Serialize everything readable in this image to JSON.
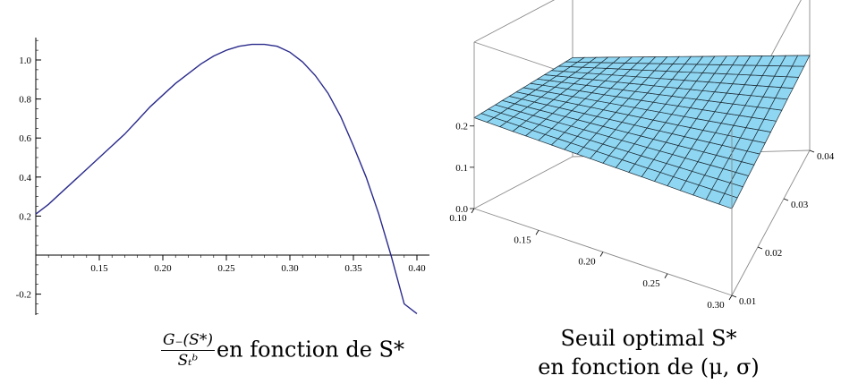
{
  "chart_data": [
    {
      "type": "line",
      "xlim": [
        0.1,
        0.4
      ],
      "ylim": [
        -0.3,
        1.12
      ],
      "x_ticks": [
        "0.15",
        "0.20",
        "0.25",
        "0.30",
        "0.35",
        "0.40"
      ],
      "y_ticks": [
        "-0.2",
        "0.2",
        "0.4",
        "0.6",
        "0.8",
        "1.0"
      ],
      "series": [
        {
          "color": "#2a2a8c",
          "x": [
            0.1,
            0.11,
            0.12,
            0.13,
            0.14,
            0.15,
            0.16,
            0.17,
            0.18,
            0.19,
            0.2,
            0.21,
            0.22,
            0.23,
            0.24,
            0.25,
            0.26,
            0.27,
            0.28,
            0.29,
            0.3,
            0.31,
            0.32,
            0.33,
            0.34,
            0.35,
            0.36,
            0.37,
            0.38,
            0.39,
            0.4
          ],
          "y": [
            0.21,
            0.26,
            0.32,
            0.38,
            0.44,
            0.5,
            0.56,
            0.62,
            0.69,
            0.76,
            0.82,
            0.88,
            0.93,
            0.98,
            1.02,
            1.05,
            1.07,
            1.08,
            1.08,
            1.07,
            1.04,
            0.99,
            0.92,
            0.83,
            0.71,
            0.56,
            0.4,
            0.21,
            -0.01,
            -0.25,
            -0.3
          ]
        }
      ],
      "grid": false
    },
    {
      "type": "surface",
      "x_ticks": [
        "0.10",
        "0.15",
        "0.20",
        "0.25",
        "0.30"
      ],
      "y_ticks": [
        "0.01",
        "0.02",
        "0.03",
        "0.04"
      ],
      "z_ticks": [
        "0.0",
        "0.1",
        "0.2"
      ],
      "xlim": [
        0.1,
        0.3
      ],
      "ylim": [
        0.01,
        0.04
      ],
      "zlim": [
        0.0,
        0.25
      ],
      "surface_color": "#8fd6f2",
      "z_corners": {
        "x_min_y_max": 0.24,
        "x_max_y_max": 0.23,
        "x_min_y_min": 0.22,
        "x_max_y_min": 0.21
      }
    }
  ],
  "captions": {
    "left_num": "G₋(S*)",
    "left_den": "Sₜᵇ",
    "left_rest": "en fonction de S*",
    "right_line1": "Seuil optimal S*",
    "right_line2": "en fonction de (μ, σ)"
  }
}
